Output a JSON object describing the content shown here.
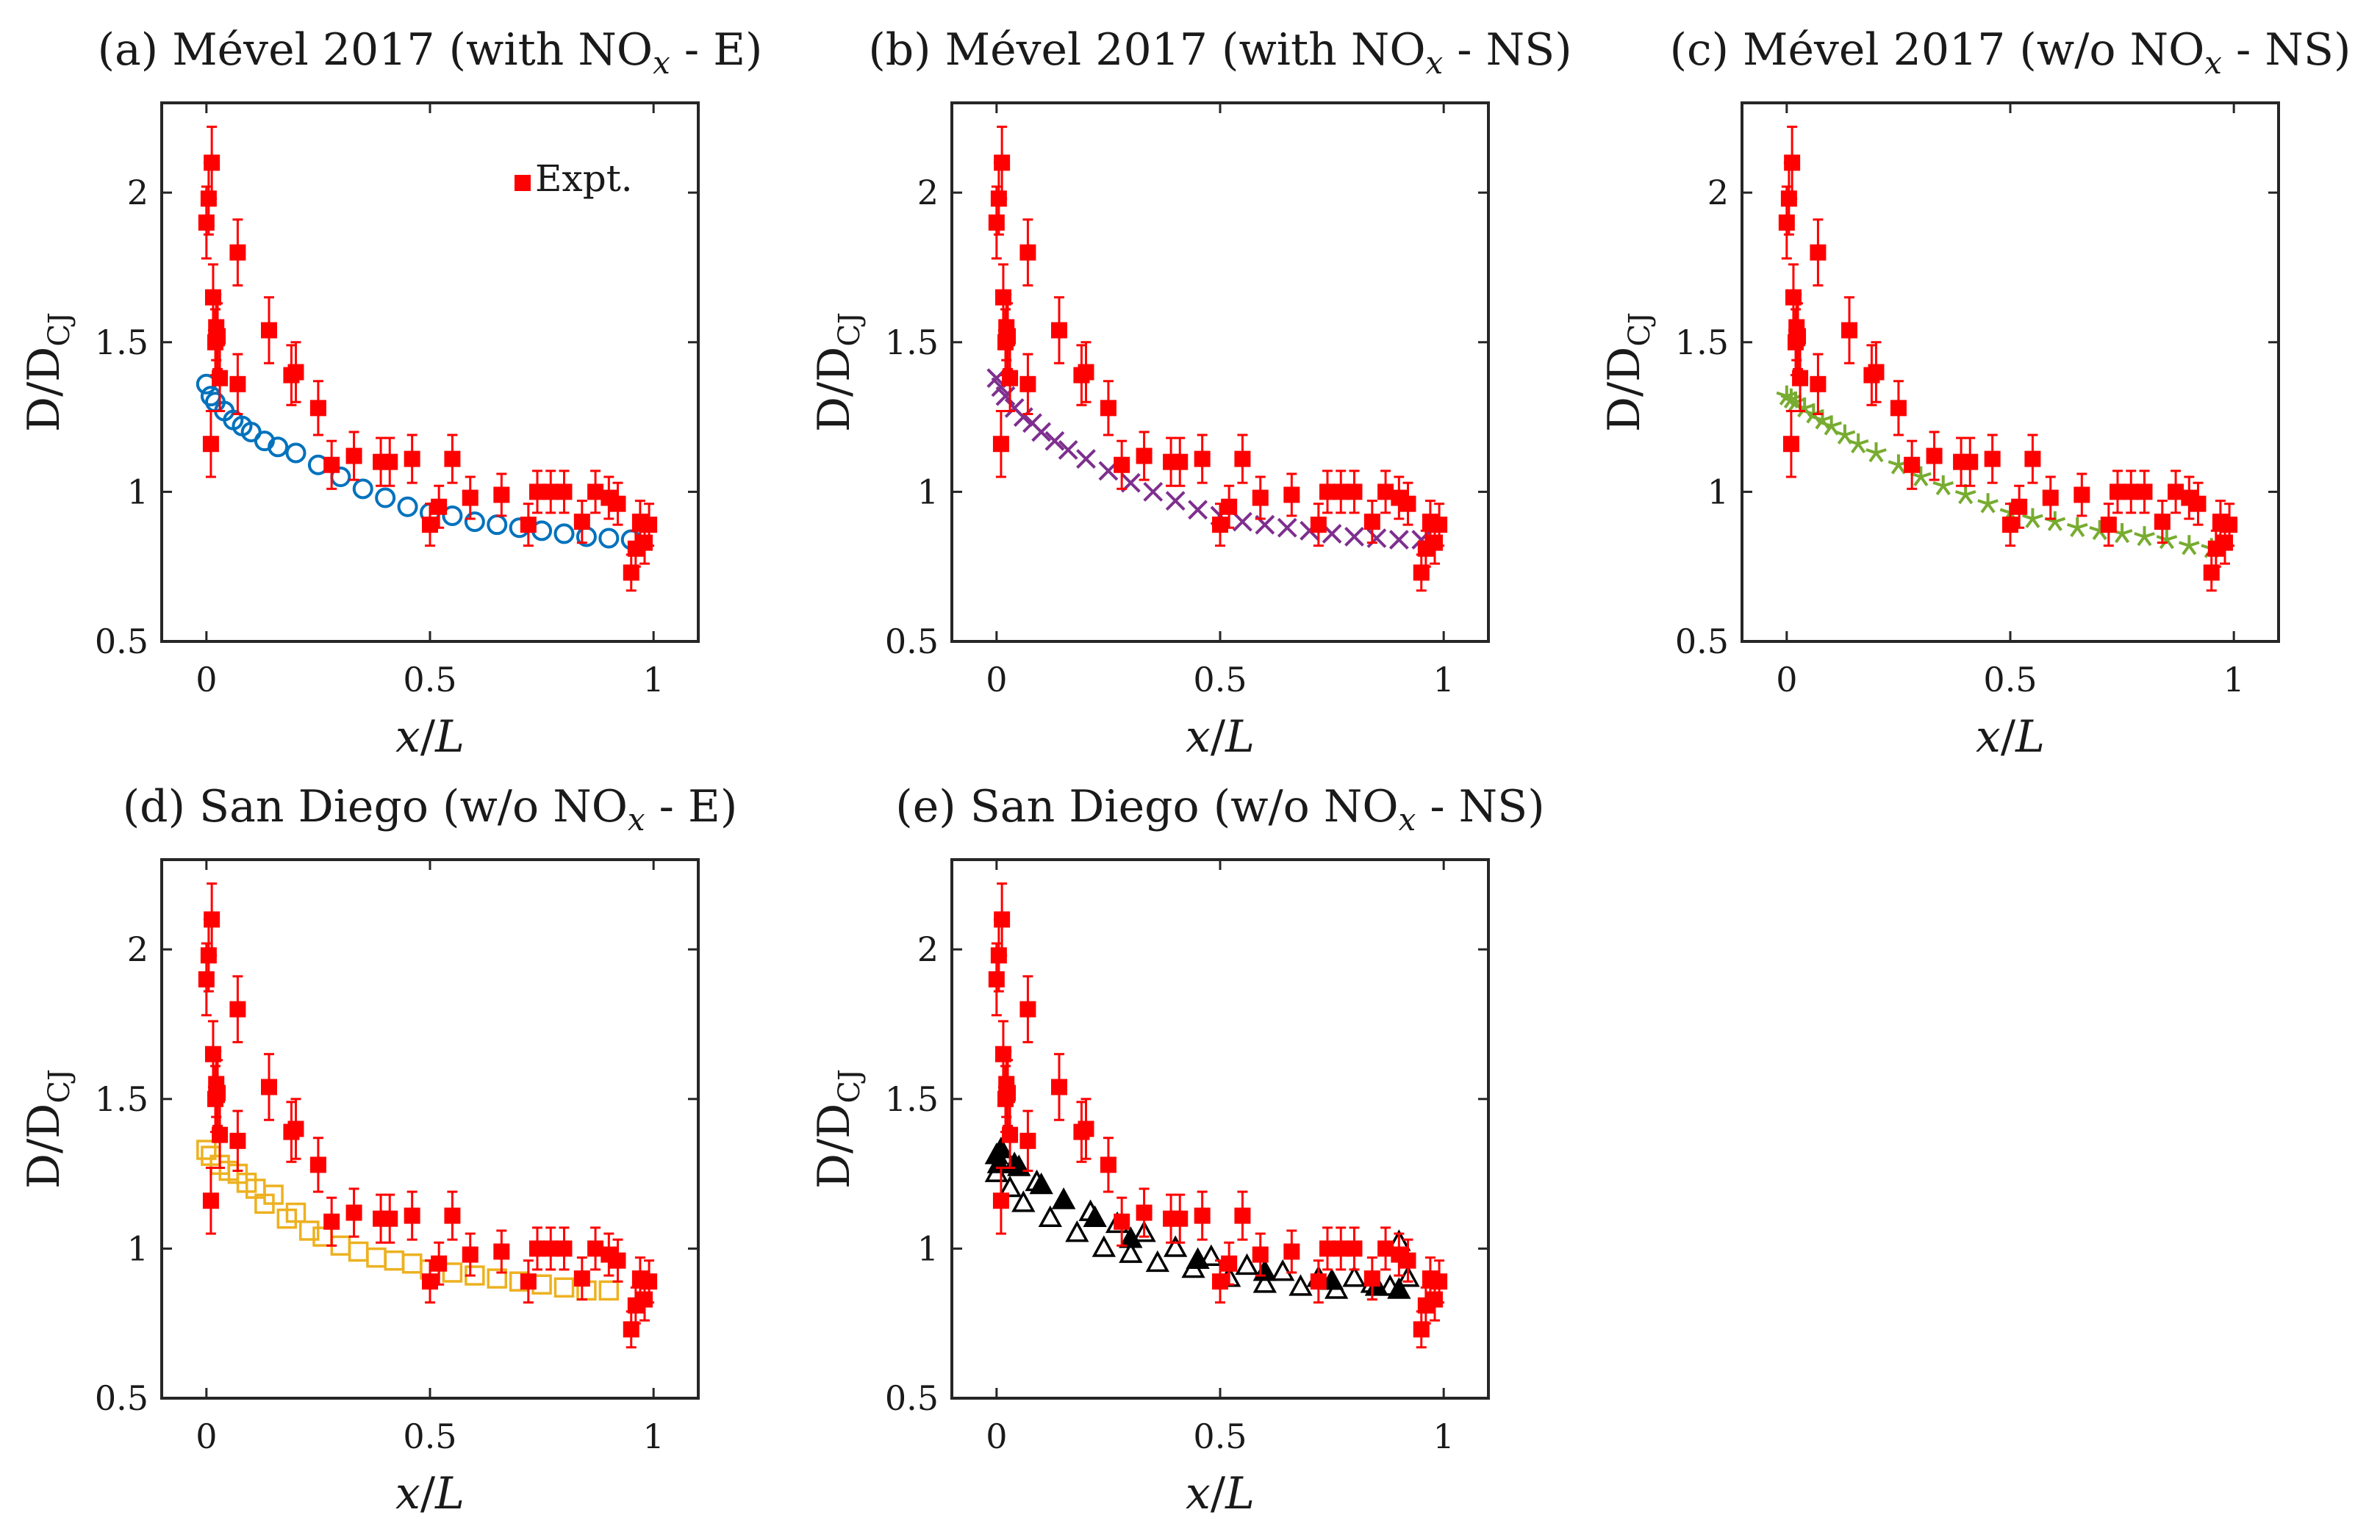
{
  "figure": {
    "xlabel_var": "x",
    "xlabel_sep": "/",
    "xlabel_len": "L",
    "ylabel_main": "D/D",
    "ylabel_sub": "CJ",
    "legend_expt": "Expt."
  },
  "colors": {
    "expt": "#ff0000",
    "mevel_e": "#0072bd",
    "mevel_ns": "#7e2f8e",
    "mevel_wo_ns": "#77ac30",
    "sd_e": "#edb120",
    "sd_ns": "#000000"
  },
  "chart_data": [
    {
      "type": "scatter",
      "title_pre": "(a) Mével 2017 (with NO",
      "title_sub": "x",
      "title_post": " - E)",
      "xlabel": "x/L",
      "ylabel": "D/D_CJ",
      "xlim": [
        -0.1,
        1.1
      ],
      "ylim": [
        0.5,
        2.3
      ],
      "xticks": [
        "0",
        "0.5",
        "1"
      ],
      "yticks": [
        "0.5",
        "1",
        "1.5",
        "2"
      ],
      "legend": "Expt.",
      "legend_position": "top-right",
      "series": [
        {
          "name": "Mével 2017 (with NOx - E)",
          "marker": "circle",
          "color_key": "mevel_e",
          "x": [
            0.0,
            0.01,
            0.02,
            0.04,
            0.06,
            0.08,
            0.1,
            0.13,
            0.16,
            0.2,
            0.25,
            0.3,
            0.35,
            0.4,
            0.45,
            0.5,
            0.55,
            0.6,
            0.65,
            0.7,
            0.75,
            0.8,
            0.85,
            0.9,
            0.95
          ],
          "y": [
            1.36,
            1.32,
            1.3,
            1.27,
            1.24,
            1.22,
            1.2,
            1.17,
            1.15,
            1.13,
            1.09,
            1.05,
            1.01,
            0.98,
            0.95,
            0.93,
            0.92,
            0.9,
            0.89,
            0.88,
            0.87,
            0.86,
            0.85,
            0.845,
            0.84
          ]
        }
      ]
    },
    {
      "type": "scatter",
      "title_pre": "(b) Mével 2017 (with NO",
      "title_sub": "x",
      "title_post": " - NS)",
      "xlabel": "x/L",
      "ylabel": "D/D_CJ",
      "xlim": [
        -0.1,
        1.1
      ],
      "ylim": [
        0.5,
        2.3
      ],
      "xticks": [
        "0",
        "0.5",
        "1"
      ],
      "yticks": [
        "0.5",
        "1",
        "1.5",
        "2"
      ],
      "series": [
        {
          "name": "Mével 2017 (with NOx - NS)",
          "marker": "cross",
          "color_key": "mevel_ns",
          "x": [
            0.0,
            0.01,
            0.02,
            0.04,
            0.06,
            0.08,
            0.1,
            0.13,
            0.16,
            0.2,
            0.25,
            0.3,
            0.35,
            0.4,
            0.45,
            0.5,
            0.55,
            0.6,
            0.65,
            0.7,
            0.75,
            0.8,
            0.85,
            0.9,
            0.95
          ],
          "y": [
            1.38,
            1.35,
            1.32,
            1.28,
            1.25,
            1.23,
            1.2,
            1.17,
            1.14,
            1.11,
            1.07,
            1.03,
            1.0,
            0.97,
            0.94,
            0.92,
            0.9,
            0.89,
            0.88,
            0.87,
            0.86,
            0.85,
            0.845,
            0.84,
            0.84
          ]
        }
      ]
    },
    {
      "type": "scatter",
      "title_pre": "(c) Mével 2017 (w/o NO",
      "title_sub": "x",
      "title_post": " - NS)",
      "xlabel": "x/L",
      "ylabel": "D/D_CJ",
      "xlim": [
        -0.1,
        1.1
      ],
      "ylim": [
        0.5,
        2.3
      ],
      "xticks": [
        "0",
        "0.5",
        "1"
      ],
      "yticks": [
        "0.5",
        "1",
        "1.5",
        "2"
      ],
      "series": [
        {
          "name": "Mével 2017 (w/o NOx - NS)",
          "marker": "star",
          "color_key": "mevel_wo_ns",
          "x": [
            0.0,
            0.01,
            0.02,
            0.04,
            0.06,
            0.08,
            0.1,
            0.13,
            0.16,
            0.2,
            0.25,
            0.3,
            0.35,
            0.4,
            0.45,
            0.5,
            0.55,
            0.6,
            0.65,
            0.7,
            0.75,
            0.8,
            0.85,
            0.9,
            0.95
          ],
          "y": [
            1.32,
            1.31,
            1.3,
            1.28,
            1.26,
            1.24,
            1.22,
            1.19,
            1.16,
            1.13,
            1.09,
            1.05,
            1.02,
            0.99,
            0.96,
            0.93,
            0.91,
            0.9,
            0.88,
            0.87,
            0.86,
            0.85,
            0.84,
            0.82,
            0.81
          ]
        }
      ]
    },
    {
      "type": "scatter",
      "title_pre": "(d) San Diego (w/o NO",
      "title_sub": "x",
      "title_post": " - E)",
      "xlabel": "x/L",
      "ylabel": "D/D_CJ",
      "xlim": [
        -0.1,
        1.1
      ],
      "ylim": [
        0.5,
        2.3
      ],
      "xticks": [
        "0",
        "0.5",
        "1"
      ],
      "yticks": [
        "0.5",
        "1",
        "1.5",
        "2"
      ],
      "series": [
        {
          "name": "San Diego (w/o NOx - E)",
          "marker": "square",
          "color_key": "sd_e",
          "x": [
            0.0,
            0.01,
            0.03,
            0.05,
            0.07,
            0.09,
            0.11,
            0.13,
            0.15,
            0.18,
            0.2,
            0.23,
            0.26,
            0.3,
            0.34,
            0.38,
            0.42,
            0.46,
            0.5,
            0.55,
            0.6,
            0.65,
            0.7,
            0.75,
            0.8,
            0.85,
            0.9
          ],
          "y": [
            1.33,
            1.31,
            1.28,
            1.26,
            1.25,
            1.22,
            1.2,
            1.15,
            1.18,
            1.1,
            1.12,
            1.06,
            1.04,
            1.01,
            0.99,
            0.97,
            0.96,
            0.95,
            0.93,
            0.92,
            0.91,
            0.9,
            0.89,
            0.88,
            0.87,
            0.86,
            0.86
          ]
        }
      ]
    },
    {
      "type": "scatter",
      "title_pre": "(e) San Diego (w/o NO",
      "title_sub": "x",
      "title_post": " - NS)",
      "xlabel": "x/L",
      "ylabel": "D/D_CJ",
      "xlim": [
        -0.1,
        1.1
      ],
      "ylim": [
        0.5,
        2.3
      ],
      "xticks": [
        "0",
        "0.5",
        "1"
      ],
      "yticks": [
        "0.5",
        "1",
        "1.5",
        "2"
      ],
      "series": [
        {
          "name": "San Diego (w/o NOx - NS)",
          "marker": "triangle-open",
          "color_key": "sd_ns",
          "x": [
            0.0,
            0.03,
            0.06,
            0.09,
            0.12,
            0.15,
            0.18,
            0.21,
            0.24,
            0.27,
            0.3,
            0.33,
            0.36,
            0.4,
            0.44,
            0.48,
            0.52,
            0.56,
            0.6,
            0.64,
            0.68,
            0.72,
            0.76,
            0.8,
            0.84,
            0.88,
            0.9,
            0.92
          ],
          "y": [
            1.25,
            1.2,
            1.15,
            1.22,
            1.1,
            1.16,
            1.05,
            1.12,
            1.0,
            1.08,
            0.98,
            1.05,
            0.95,
            1.0,
            0.93,
            0.97,
            0.9,
            0.94,
            0.88,
            0.92,
            0.87,
            0.9,
            0.86,
            0.9,
            0.88,
            0.87,
            1.02,
            0.9
          ]
        },
        {
          "name": "San Diego (w/o NOx - NS) filled",
          "marker": "triangle-filled",
          "color_key": "sd_ns",
          "x": [
            0.0,
            0.005,
            0.01,
            0.04,
            0.05,
            0.1,
            0.15,
            0.22,
            0.3,
            0.45,
            0.6,
            0.75,
            0.85,
            0.9
          ],
          "y": [
            1.31,
            1.28,
            1.33,
            1.28,
            1.27,
            1.21,
            1.16,
            1.1,
            1.03,
            0.96,
            0.92,
            0.89,
            0.87,
            0.86
          ]
        }
      ]
    }
  ],
  "expt_data": {
    "x": [
      0.0,
      0.005,
      0.01,
      0.012,
      0.015,
      0.02,
      0.022,
      0.025,
      0.03,
      0.07,
      0.07,
      0.14,
      0.19,
      0.2,
      0.25,
      0.28,
      0.33,
      0.39,
      0.41,
      0.46,
      0.5,
      0.52,
      0.55,
      0.59,
      0.66,
      0.72,
      0.74,
      0.77,
      0.8,
      0.84,
      0.87,
      0.9,
      0.92,
      0.95,
      0.96,
      0.97,
      0.98,
      0.99
    ],
    "y": [
      1.9,
      1.98,
      1.16,
      2.1,
      1.65,
      1.5,
      1.55,
      1.52,
      1.38,
      1.8,
      1.36,
      1.54,
      1.39,
      1.4,
      1.28,
      1.09,
      1.12,
      1.1,
      1.1,
      1.11,
      0.89,
      0.95,
      1.11,
      0.98,
      0.99,
      0.89,
      1.0,
      1.0,
      1.0,
      0.9,
      1.0,
      0.98,
      0.96,
      0.73,
      0.81,
      0.9,
      0.83,
      0.89
    ],
    "err": [
      0.12,
      0.12,
      0.11,
      0.12,
      0.11,
      0.11,
      0.11,
      0.11,
      0.11,
      0.11,
      0.1,
      0.11,
      0.1,
      0.1,
      0.09,
      0.08,
      0.08,
      0.08,
      0.08,
      0.08,
      0.07,
      0.07,
      0.08,
      0.07,
      0.07,
      0.07,
      0.07,
      0.07,
      0.07,
      0.07,
      0.07,
      0.07,
      0.07,
      0.06,
      0.06,
      0.07,
      0.07,
      0.07
    ]
  }
}
